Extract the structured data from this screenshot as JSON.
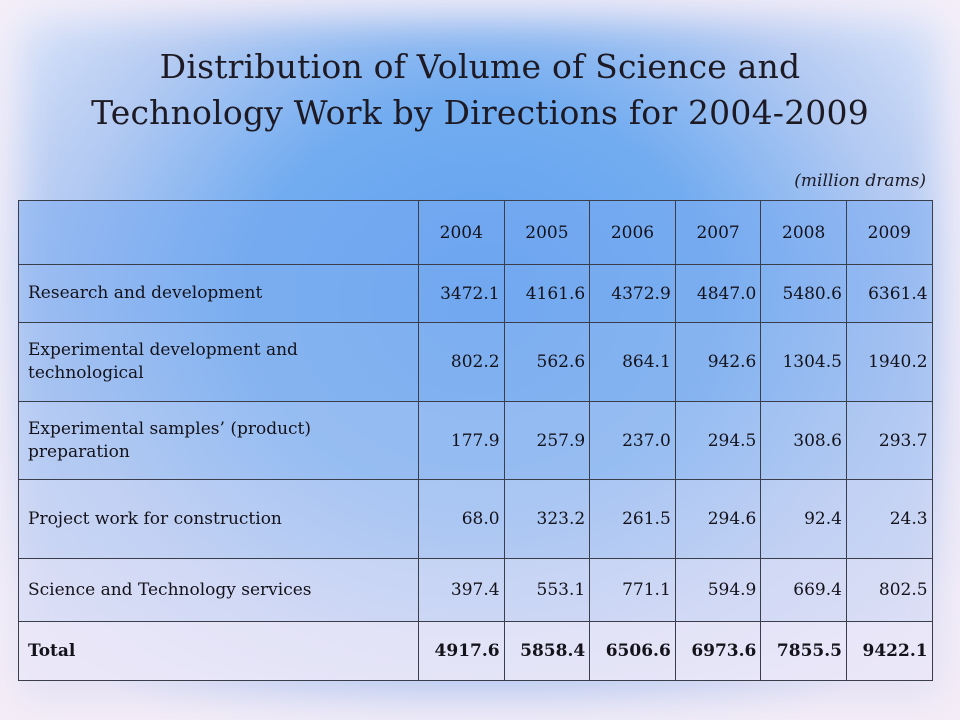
{
  "slide": {
    "title_line1": "Distribution of Volume of Science and",
    "title_line2": "Technology Work by Directions for 2004-2009",
    "units": "(million drams)"
  },
  "table": {
    "corner": "",
    "years": [
      "2004",
      "2005",
      "2006",
      "2007",
      "2008",
      "2009"
    ],
    "rows": [
      {
        "label": "Research and development",
        "values": [
          "3472.1",
          "4161.6",
          "4372.9",
          "4847.0",
          "5480.6",
          "6361.4"
        ]
      },
      {
        "label": "Experimental development and technological",
        "values": [
          "802.2",
          "562.6",
          "864.1",
          "942.6",
          "1304.5",
          "1940.2"
        ]
      },
      {
        "label": "Experimental samples’ (product) preparation",
        "values": [
          "177.9",
          "257.9",
          "237.0",
          "294.5",
          "308.6",
          "293.7"
        ]
      },
      {
        "label": "Project work for construction",
        "values": [
          "68.0",
          "323.2",
          "261.5",
          "294.6",
          "92.4",
          "24.3"
        ]
      },
      {
        "label": "Science and Technology services",
        "values": [
          "397.4",
          "553.1",
          "771.1",
          "594.9",
          "669.4",
          "802.5"
        ]
      },
      {
        "label": "Total",
        "values": [
          "4917.6",
          "5858.4",
          "6506.6",
          "6973.6",
          "7855.5",
          "9422.1"
        ]
      }
    ]
  },
  "colors": {
    "background_center": "#5fa0f0",
    "background_edge": "#f4ecf7",
    "text": "#1d1a24",
    "grid": "#3a3d4a"
  }
}
